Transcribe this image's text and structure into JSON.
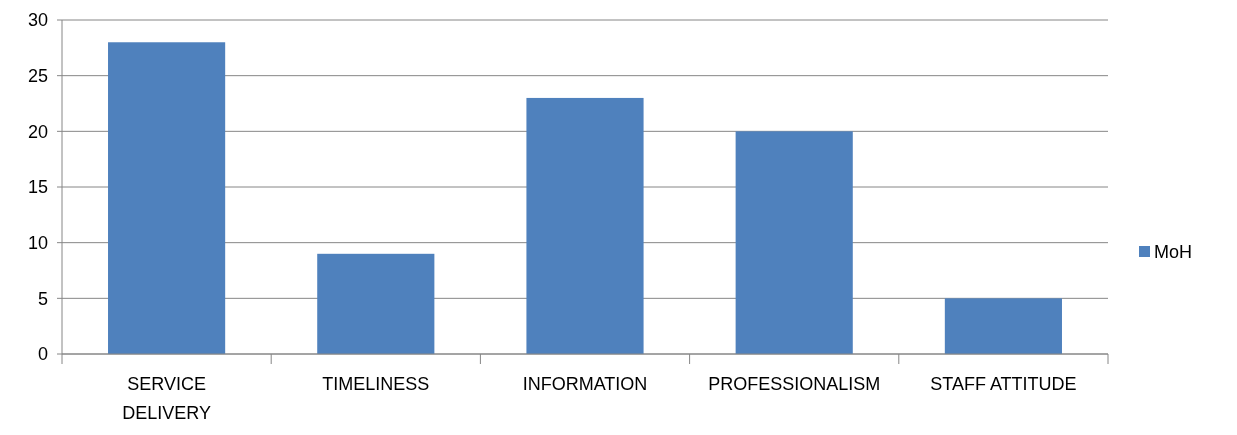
{
  "chart_data": {
    "type": "bar",
    "categories": [
      "SERVICE DELIVERY",
      "TIMELINESS",
      "INFORMATION",
      "PROFESSIONALISM",
      "STAFF ATTITUDE"
    ],
    "series": [
      {
        "name": "MoH",
        "color": "#4f81bd",
        "values": [
          28,
          9,
          23,
          20,
          5
        ]
      }
    ],
    "ylim": [
      0,
      30
    ],
    "yticks": [
      0,
      5,
      10,
      15,
      20,
      25,
      30
    ],
    "grid": "y",
    "legend": "right"
  }
}
